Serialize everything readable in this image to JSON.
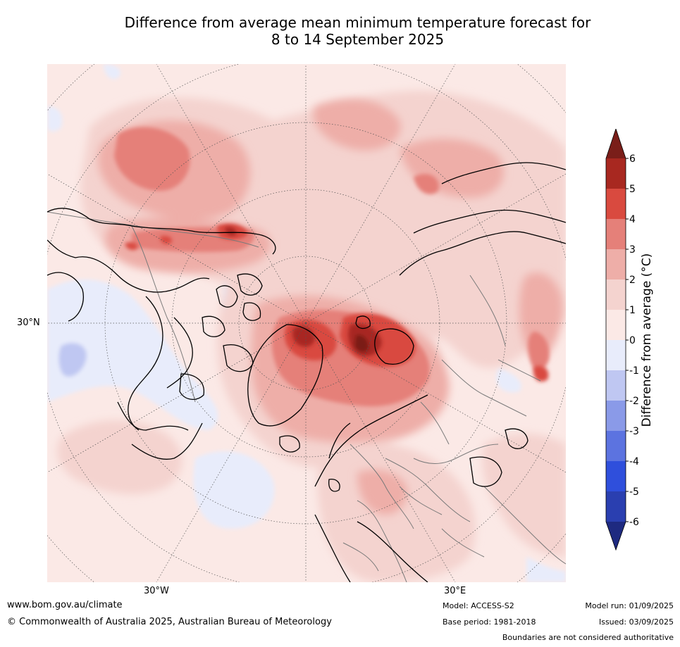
{
  "title": {
    "line1": "Difference from average mean minimum temperature forecast for",
    "line2": "8 to 14 September 2025"
  },
  "map": {
    "lat_label_left": "30°N",
    "lon_label_left": "30°W",
    "lon_label_right": "30°E",
    "colors": {
      "ocean_base": "#fbe9e6",
      "land_outline": "#000000",
      "boundary": "#7a7a7a",
      "grid": "#555555"
    }
  },
  "colorbar": {
    "label": "Difference from average (°C)",
    "ticks": [
      "6",
      "5",
      "4",
      "3",
      "2",
      "1",
      "0",
      "-1",
      "-2",
      "-3",
      "-4",
      "-5",
      "-6"
    ],
    "bins": [
      {
        "range": ">6",
        "color": "#7a1e19"
      },
      {
        "range": "5 to 6",
        "color": "#a82820"
      },
      {
        "range": "4 to 5",
        "color": "#d94a3f"
      },
      {
        "range": "3 to 4",
        "color": "#e58079"
      },
      {
        "range": "2 to 3",
        "color": "#eeaea8"
      },
      {
        "range": "1 to 2",
        "color": "#f4d3cf"
      },
      {
        "range": "0 to 1",
        "color": "#fbe9e6"
      },
      {
        "range": "-1 to 0",
        "color": "#e8ecfb"
      },
      {
        "range": "-2 to -1",
        "color": "#bfc7f2"
      },
      {
        "range": "-3 to -2",
        "color": "#8a9ae8"
      },
      {
        "range": "-4 to -3",
        "color": "#5c73e0"
      },
      {
        "range": "-5 to -4",
        "color": "#2f4fdc"
      },
      {
        "range": "-6 to -5",
        "color": "#2a3fb0"
      },
      {
        "range": "<-6",
        "color": "#1e2a80"
      }
    ]
  },
  "footer": {
    "website": "www.bom.gov.au/climate",
    "copyright": "© Commonwealth of Australia 2025, Australian Bureau of Meteorology",
    "model": "Model: ACCESS-S2",
    "base_period": "Base period: 1981-2018",
    "model_run": "Model run: 01/09/2025",
    "issued": "Issued: 03/09/2025",
    "disclaimer": "Boundaries are not considered authoritative"
  }
}
